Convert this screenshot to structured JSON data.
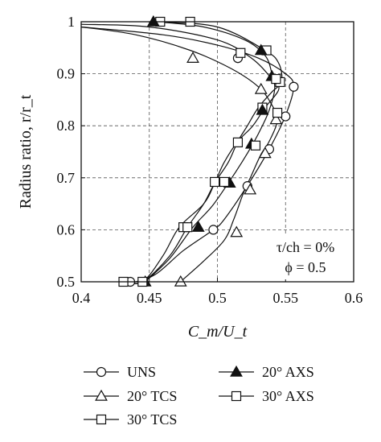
{
  "chart_data": {
    "type": "line",
    "xlabel": "C_m/U_t",
    "ylabel": "Radius ratio, r/r_t",
    "xlim": [
      0.4,
      0.6
    ],
    "ylim": [
      0.5,
      1.0
    ],
    "x_ticks": [
      "0.4",
      "0.45",
      "0.5",
      "0.55",
      "0.6"
    ],
    "y_ticks": [
      "0.5",
      "0.6",
      "0.7",
      "0.8",
      "0.9",
      "1"
    ],
    "grid": "dashed",
    "annotation_lines": [
      "τ/ch = 0%",
      "ϕ = 0.5"
    ],
    "legend_placement": "bottom",
    "series": [
      {
        "name": "UNS",
        "marker": "circle-open",
        "curve": [
          [
            0.4,
            0.99
          ],
          [
            0.46,
            0.975
          ],
          [
            0.5,
            0.955
          ],
          [
            0.53,
            0.93
          ],
          [
            0.55,
            0.9
          ],
          [
            0.556,
            0.875
          ],
          [
            0.55,
            0.82
          ],
          [
            0.538,
            0.755
          ],
          [
            0.522,
            0.685
          ],
          [
            0.505,
            0.62
          ],
          [
            0.497,
            0.6
          ],
          [
            0.475,
            0.56
          ],
          [
            0.455,
            0.515
          ],
          [
            0.44,
            0.5
          ],
          [
            0.432,
            0.5
          ]
        ],
        "markers": [
          [
            0.436,
            0.5
          ],
          [
            0.497,
            0.6
          ],
          [
            0.522,
            0.684
          ],
          [
            0.538,
            0.755
          ],
          [
            0.55,
            0.818
          ],
          [
            0.556,
            0.875
          ],
          [
            0.515,
            0.93
          ]
        ]
      },
      {
        "name": "20° TCS",
        "marker": "triangle-open",
        "curve": [
          [
            0.4,
            0.99
          ],
          [
            0.44,
            0.975
          ],
          [
            0.48,
            0.945
          ],
          [
            0.51,
            0.91
          ],
          [
            0.53,
            0.875
          ],
          [
            0.54,
            0.84
          ],
          [
            0.544,
            0.81
          ],
          [
            0.538,
            0.77
          ],
          [
            0.532,
            0.745
          ],
          [
            0.525,
            0.705
          ],
          [
            0.519,
            0.67
          ],
          [
            0.512,
            0.62
          ],
          [
            0.505,
            0.58
          ],
          [
            0.49,
            0.54
          ],
          [
            0.475,
            0.505
          ],
          [
            0.473,
            0.5
          ]
        ],
        "markers": [
          [
            0.473,
            0.5
          ],
          [
            0.514,
            0.595
          ],
          [
            0.524,
            0.677
          ],
          [
            0.535,
            0.747
          ],
          [
            0.543,
            0.812
          ],
          [
            0.532,
            0.87
          ],
          [
            0.482,
            0.93
          ]
        ]
      },
      {
        "name": "30° TCS",
        "marker": "square-open",
        "curve": [
          [
            0.43,
            0.5
          ],
          [
            0.445,
            0.5
          ],
          [
            0.465,
            0.55
          ],
          [
            0.478,
            0.605
          ],
          [
            0.49,
            0.65
          ],
          [
            0.498,
            0.69
          ],
          [
            0.508,
            0.73
          ],
          [
            0.515,
            0.77
          ],
          [
            0.522,
            0.8
          ],
          [
            0.53,
            0.835
          ],
          [
            0.54,
            0.865
          ],
          [
            0.547,
            0.885
          ],
          [
            0.545,
            0.92
          ],
          [
            0.535,
            0.945
          ],
          [
            0.5,
            0.99
          ],
          [
            0.455,
            1.0
          ]
        ],
        "markers": [
          [
            0.431,
            0.5
          ],
          [
            0.475,
            0.605
          ],
          [
            0.498,
            0.692
          ],
          [
            0.515,
            0.768
          ],
          [
            0.533,
            0.835
          ],
          [
            0.546,
            0.884
          ],
          [
            0.536,
            0.945
          ],
          [
            0.48,
            1.0
          ],
          [
            0.458,
            1.0
          ]
        ]
      },
      {
        "name": "20° AXS",
        "marker": "triangle-filled",
        "curve": [
          [
            0.447,
            0.5
          ],
          [
            0.465,
            0.545
          ],
          [
            0.482,
            0.605
          ],
          [
            0.496,
            0.645
          ],
          [
            0.508,
            0.69
          ],
          [
            0.518,
            0.73
          ],
          [
            0.526,
            0.765
          ],
          [
            0.533,
            0.8
          ],
          [
            0.538,
            0.83
          ],
          [
            0.542,
            0.87
          ],
          [
            0.54,
            0.9
          ],
          [
            0.535,
            0.935
          ],
          [
            0.52,
            0.965
          ],
          [
            0.49,
            0.99
          ],
          [
            0.455,
            1.0
          ]
        ],
        "markers": [
          [
            0.447,
            0.5
          ],
          [
            0.486,
            0.605
          ],
          [
            0.509,
            0.69
          ],
          [
            0.525,
            0.765
          ],
          [
            0.533,
            0.83
          ],
          [
            0.54,
            0.895
          ],
          [
            0.532,
            0.945
          ],
          [
            0.453,
            1.0
          ]
        ]
      },
      {
        "name": "30° AXS",
        "marker": "square-open",
        "curve": [
          [
            0.43,
            0.5
          ],
          [
            0.445,
            0.5
          ],
          [
            0.46,
            0.55
          ],
          [
            0.472,
            0.605
          ],
          [
            0.49,
            0.65
          ],
          [
            0.498,
            0.69
          ],
          [
            0.505,
            0.73
          ],
          [
            0.515,
            0.77
          ],
          [
            0.526,
            0.8
          ],
          [
            0.535,
            0.835
          ],
          [
            0.545,
            0.87
          ],
          [
            0.54,
            0.89
          ],
          [
            0.525,
            0.93
          ],
          [
            0.5,
            0.965
          ],
          [
            0.45,
            0.99
          ],
          [
            0.4,
            0.995
          ]
        ],
        "markers": [
          [
            0.445,
            0.5
          ],
          [
            0.478,
            0.605
          ],
          [
            0.505,
            0.692
          ],
          [
            0.528,
            0.762
          ],
          [
            0.544,
            0.825
          ],
          [
            0.543,
            0.89
          ],
          [
            0.517,
            0.94
          ]
        ]
      }
    ]
  },
  "legend": {
    "items": [
      {
        "label": "UNS",
        "marker": "circle-open"
      },
      {
        "label": "20° AXS",
        "marker": "triangle-filled"
      },
      {
        "label": "20° TCS",
        "marker": "triangle-open"
      },
      {
        "label": "30° AXS",
        "marker": "square-open"
      },
      {
        "label": "30° TCS",
        "marker": "square-open"
      }
    ]
  },
  "colors": {
    "ink": "#111111",
    "grid": "#555555",
    "background": "#ffffff"
  }
}
